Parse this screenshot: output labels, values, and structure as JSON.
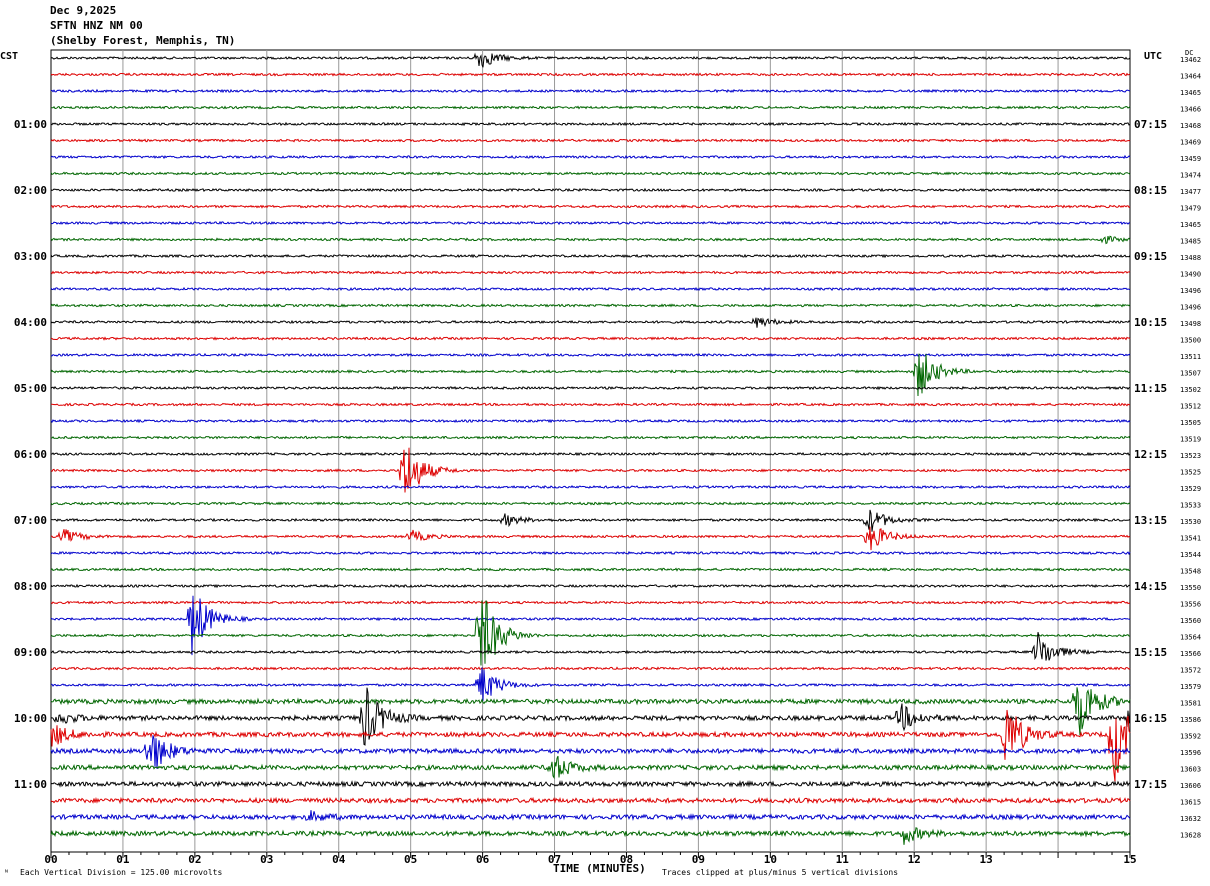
{
  "header": {
    "date": "Dec 9,2025",
    "station": "SFTN HNZ NM 00",
    "location": "(Shelby Forest, Memphis, TN)"
  },
  "left_axis_label": "CST",
  "right_axis_label": "UTC",
  "dc_label": "DC",
  "footer": {
    "scale_note": "Each Vertical Division =  125.00 microvolts",
    "clip_note": "Traces clipped at plus/minus 5 vertical divisions"
  },
  "colors": {
    "trace_cycle": [
      "#000000",
      "#dd0000",
      "#0000cc",
      "#006600"
    ],
    "grid": "#999999"
  },
  "chart_data": {
    "type": "line",
    "title": "SFTN HNZ NM 00",
    "xlabel": "TIME (MINUTES)",
    "ylabel": "",
    "xlim": [
      0,
      15
    ],
    "x_ticks": [
      "00",
      "01",
      "02",
      "03",
      "04",
      "05",
      "06",
      "07",
      "08",
      "09",
      "10",
      "11",
      "12",
      "13",
      "15"
    ],
    "x_tick_values": [
      0,
      1,
      2,
      3,
      4,
      5,
      6,
      7,
      8,
      9,
      10,
      11,
      12,
      13,
      15
    ],
    "trace_count": 48,
    "cst_labels": [
      "01:00",
      "02:00",
      "03:00",
      "04:00",
      "05:00",
      "06:00",
      "07:00",
      "08:00",
      "09:00",
      "10:00",
      "11:00"
    ],
    "utc_labels": [
      "07:15",
      "08:15",
      "09:15",
      "10:15",
      "11:15",
      "12:15",
      "13:15",
      "14:15",
      "15:15",
      "16:15",
      "17:15"
    ],
    "hour_label_trace_indices": [
      4,
      8,
      12,
      16,
      20,
      24,
      28,
      32,
      36,
      40,
      44
    ],
    "dc_offsets": [
      "13462",
      "13464",
      "13465",
      "13466",
      "13468",
      "13469",
      "13459",
      "13474",
      "13477",
      "13479",
      "13465",
      "13485",
      "13488",
      "13490",
      "13496",
      "13496",
      "13498",
      "13500",
      "13511",
      "13507",
      "13502",
      "13512",
      "13505",
      "13519",
      "13523",
      "13525",
      "13529",
      "13533",
      "13530",
      "13541",
      "13544",
      "13548",
      "13550",
      "13556",
      "13560",
      "13564",
      "13566",
      "13572",
      "13579",
      "13581",
      "13586",
      "13592",
      "13596",
      "13603",
      "13606",
      "13615",
      "13632",
      "13628"
    ],
    "clip_divisions": 5,
    "vertical_division_microvolts": 125.0,
    "events": [
      {
        "trace": 0,
        "minute": 5.93,
        "amp": 0.8
      },
      {
        "trace": 11,
        "minute": 14.6,
        "amp": 0.25
      },
      {
        "trace": 16,
        "minute": 9.78,
        "amp": 0.4
      },
      {
        "trace": 19,
        "minute": 12.05,
        "amp": 1.8
      },
      {
        "trace": 25,
        "minute": 4.9,
        "amp": 2.4
      },
      {
        "trace": 28,
        "minute": 6.3,
        "amp": 0.4
      },
      {
        "trace": 28,
        "minute": 11.35,
        "amp": 0.9
      },
      {
        "trace": 29,
        "minute": 11.35,
        "amp": 1.1
      },
      {
        "trace": 29,
        "minute": 0.15,
        "amp": 0.5
      },
      {
        "trace": 29,
        "minute": 5.0,
        "amp": 0.4
      },
      {
        "trace": 34,
        "minute": 1.95,
        "amp": 2.4
      },
      {
        "trace": 35,
        "minute": 5.95,
        "amp": 3.5
      },
      {
        "trace": 36,
        "minute": 13.7,
        "amp": 1.4
      },
      {
        "trace": 38,
        "minute": 5.95,
        "amp": 1.5
      },
      {
        "trace": 39,
        "minute": 14.25,
        "amp": 2.6
      },
      {
        "trace": 40,
        "minute": 4.35,
        "amp": 2.2
      },
      {
        "trace": 40,
        "minute": 11.8,
        "amp": 0.9
      },
      {
        "trace": 40,
        "minute": 15.0,
        "amp": 1.4
      },
      {
        "trace": 40,
        "minute": 0.1,
        "amp": 0.4
      },
      {
        "trace": 41,
        "minute": 13.25,
        "amp": 2.5
      },
      {
        "trace": 41,
        "minute": 14.75,
        "amp": 3.5
      },
      {
        "trace": 41,
        "minute": 0.0,
        "amp": 0.8
      },
      {
        "trace": 42,
        "minute": 1.35,
        "amp": 1.8
      },
      {
        "trace": 43,
        "minute": 6.95,
        "amp": 1.0
      },
      {
        "trace": 46,
        "minute": 3.6,
        "amp": 0.3
      },
      {
        "trace": 47,
        "minute": 11.85,
        "amp": 0.6
      }
    ],
    "noisy_traces": [
      39,
      40,
      41,
      42,
      43,
      44,
      45,
      46,
      47
    ]
  }
}
